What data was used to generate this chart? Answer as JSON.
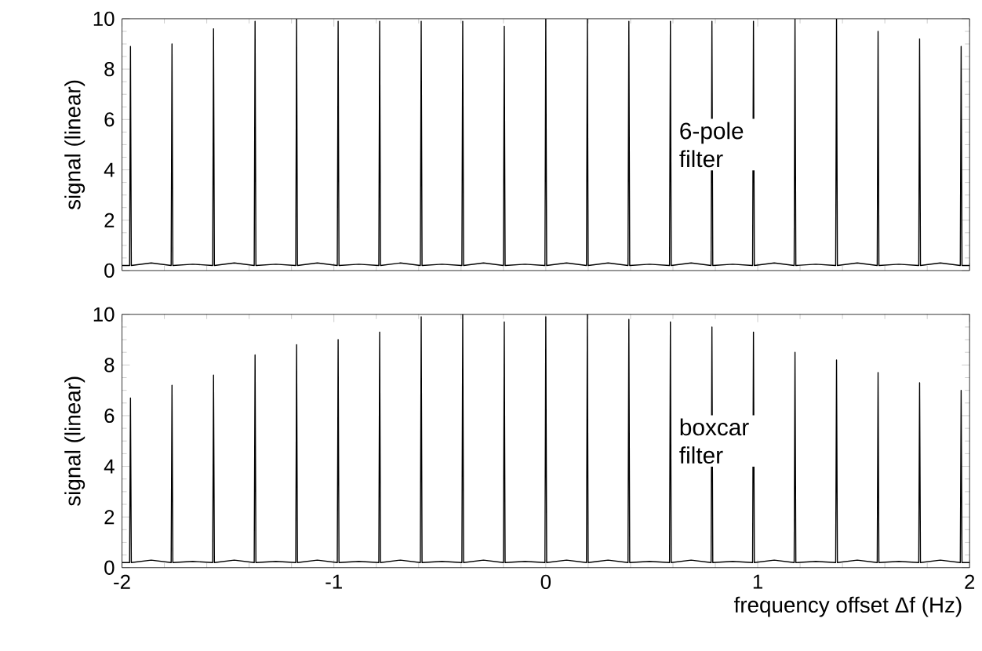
{
  "chart_data": [
    {
      "type": "line",
      "ylabel": "signal (linear)",
      "annotations": [
        "6-pole filter"
      ],
      "tick_labels": "y",
      "marker": "none",
      "line_style": "solid",
      "grid": false,
      "xlim": [
        -2,
        2
      ],
      "ylim": [
        0,
        10
      ],
      "xticks": [
        -2,
        -1,
        0,
        1,
        2
      ],
      "yticks": [
        0,
        2,
        4,
        6,
        8,
        10
      ],
      "series": [
        {
          "color": "#000000",
          "x": [
            -2,
            -1.964,
            -1.96,
            -1.956,
            -1.862,
            -1.768,
            -1.764,
            -1.76,
            -1.666,
            -1.572,
            -1.568,
            -1.564,
            -1.47,
            -1.376,
            -1.372,
            -1.368,
            -1.274,
            -1.18,
            -1.176,
            -1.172,
            -1.078,
            -0.984,
            -0.98,
            -0.976,
            -0.882,
            -0.788,
            -0.784,
            -0.78,
            -0.686,
            -0.592,
            -0.588,
            -0.584,
            -0.49,
            -0.396,
            -0.392,
            -0.388,
            -0.294,
            -0.2,
            -0.196,
            -0.192,
            -0.098,
            -0.004,
            0,
            0.004,
            0.098,
            0.192,
            0.196,
            0.2,
            0.294,
            0.388,
            0.392,
            0.396,
            0.49,
            0.584,
            0.588,
            0.592,
            0.686,
            0.78,
            0.784,
            0.788,
            0.882,
            0.976,
            0.98,
            0.984,
            1.078,
            1.172,
            1.176,
            1.18,
            1.274,
            1.368,
            1.372,
            1.376,
            1.47,
            1.564,
            1.568,
            1.572,
            1.666,
            1.76,
            1.764,
            1.768,
            1.862,
            1.956,
            1.96,
            1.964,
            2
          ],
          "values": [
            0.2,
            0.2,
            8.9,
            0.2,
            0.3,
            0.2,
            9.0,
            0.2,
            0.25,
            0.2,
            9.6,
            0.2,
            0.3,
            0.2,
            9.9,
            0.2,
            0.25,
            0.2,
            10,
            0.2,
            0.3,
            0.2,
            9.9,
            0.2,
            0.25,
            0.2,
            9.9,
            0.2,
            0.3,
            0.2,
            9.9,
            0.2,
            0.25,
            0.2,
            9.9,
            0.2,
            0.3,
            0.2,
            9.7,
            0.2,
            0.25,
            0.2,
            10,
            0.2,
            0.3,
            0.2,
            10,
            0.2,
            0.3,
            0.2,
            9.9,
            0.2,
            0.25,
            0.2,
            9.9,
            0.2,
            0.3,
            0.2,
            9.9,
            0.2,
            0.25,
            0.2,
            9.9,
            0.2,
            0.3,
            0.2,
            10,
            0.2,
            0.25,
            0.2,
            10,
            0.2,
            0.3,
            0.2,
            9.5,
            0.2,
            0.25,
            0.2,
            9.2,
            0.2,
            0.3,
            0.2,
            8.9,
            0.2,
            0.2
          ]
        }
      ]
    },
    {
      "type": "line",
      "ylabel": "signal (linear)",
      "xlabel": "frequency offset Δf (Hz)",
      "annotations": [
        "boxcar filter"
      ],
      "marker": "none",
      "line_style": "solid",
      "grid": false,
      "xlim": [
        -2,
        2
      ],
      "ylim": [
        0,
        10
      ],
      "xticks": [
        -2,
        -1,
        0,
        1,
        2
      ],
      "yticks": [
        0,
        2,
        4,
        6,
        8,
        10
      ],
      "series": [
        {
          "color": "#000000",
          "x": [
            -2,
            -1.964,
            -1.96,
            -1.956,
            -1.862,
            -1.768,
            -1.764,
            -1.76,
            -1.666,
            -1.572,
            -1.568,
            -1.564,
            -1.47,
            -1.376,
            -1.372,
            -1.368,
            -1.274,
            -1.18,
            -1.176,
            -1.172,
            -1.078,
            -0.984,
            -0.98,
            -0.976,
            -0.882,
            -0.788,
            -0.784,
            -0.78,
            -0.686,
            -0.592,
            -0.588,
            -0.584,
            -0.49,
            -0.396,
            -0.392,
            -0.388,
            -0.294,
            -0.2,
            -0.196,
            -0.192,
            -0.098,
            -0.004,
            0,
            0.004,
            0.098,
            0.192,
            0.196,
            0.2,
            0.294,
            0.388,
            0.392,
            0.396,
            0.49,
            0.584,
            0.588,
            0.592,
            0.686,
            0.78,
            0.784,
            0.788,
            0.882,
            0.976,
            0.98,
            0.984,
            1.078,
            1.172,
            1.176,
            1.18,
            1.274,
            1.368,
            1.372,
            1.376,
            1.47,
            1.564,
            1.568,
            1.572,
            1.666,
            1.76,
            1.764,
            1.768,
            1.862,
            1.956,
            1.96,
            1.964,
            2
          ],
          "values": [
            0.2,
            0.2,
            6.7,
            0.2,
            0.3,
            0.2,
            7.2,
            0.2,
            0.25,
            0.2,
            7.6,
            0.2,
            0.3,
            0.2,
            8.4,
            0.2,
            0.25,
            0.2,
            8.8,
            0.2,
            0.3,
            0.2,
            9.0,
            0.2,
            0.25,
            0.2,
            9.3,
            0.2,
            0.3,
            0.2,
            9.9,
            0.2,
            0.25,
            0.2,
            10,
            0.2,
            0.3,
            0.2,
            9.7,
            0.2,
            0.25,
            0.2,
            9.9,
            0.2,
            0.3,
            0.2,
            10,
            0.2,
            0.3,
            0.2,
            9.8,
            0.2,
            0.25,
            0.2,
            9.7,
            0.2,
            0.3,
            0.2,
            9.5,
            0.2,
            0.25,
            0.2,
            9.3,
            0.2,
            0.3,
            0.2,
            8.5,
            0.2,
            0.25,
            0.2,
            8.2,
            0.2,
            0.3,
            0.2,
            7.7,
            0.2,
            0.25,
            0.2,
            7.3,
            0.2,
            0.3,
            0.2,
            7.0,
            0.2,
            0.2
          ]
        }
      ]
    }
  ]
}
